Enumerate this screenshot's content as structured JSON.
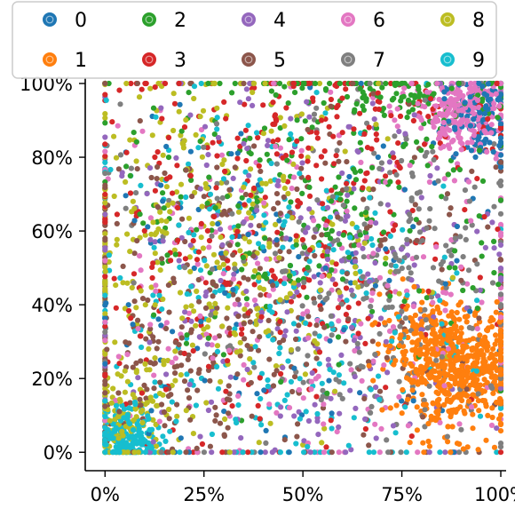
{
  "chart_data": {
    "type": "scatter",
    "title": "",
    "xlabel": "",
    "ylabel": "",
    "xlim": [
      -0.05,
      1.0
    ],
    "ylim": [
      -0.05,
      1.0
    ],
    "grid": false,
    "legend": {
      "placement": "top",
      "columns": 5
    },
    "x_ticks": [
      {
        "value": 0.0,
        "label": "0%"
      },
      {
        "value": 0.25,
        "label": "25%"
      },
      {
        "value": 0.5,
        "label": "50%"
      },
      {
        "value": 0.75,
        "label": "75%"
      },
      {
        "value": 1.0,
        "label": "100%"
      }
    ],
    "y_ticks": [
      {
        "value": 0.0,
        "label": "0%"
      },
      {
        "value": 0.2,
        "label": "20%"
      },
      {
        "value": 0.4,
        "label": "40%"
      },
      {
        "value": 0.6,
        "label": "60%"
      },
      {
        "value": 0.8,
        "label": "80%"
      },
      {
        "value": 1.0,
        "label": "100%"
      }
    ],
    "series": [
      {
        "name": "0",
        "color": "#1f77b4",
        "clusters": [
          {
            "cx": 0.95,
            "cy": 0.9,
            "sx": 0.05,
            "sy": 0.06,
            "n": 120
          },
          {
            "cx": 0.45,
            "cy": 0.5,
            "sx": 0.28,
            "sy": 0.28,
            "n": 130
          }
        ]
      },
      {
        "name": "1",
        "color": "#ff7f0e",
        "clusters": [
          {
            "cx": 0.9,
            "cy": 0.22,
            "sx": 0.08,
            "sy": 0.08,
            "n": 520
          },
          {
            "cx": 0.82,
            "cy": 0.3,
            "sx": 0.06,
            "sy": 0.06,
            "n": 160
          }
        ]
      },
      {
        "name": "2",
        "color": "#2ca02c",
        "clusters": [
          {
            "cx": 0.55,
            "cy": 0.7,
            "sx": 0.26,
            "sy": 0.22,
            "n": 280
          },
          {
            "cx": 0.8,
            "cy": 0.96,
            "sx": 0.15,
            "sy": 0.03,
            "n": 90
          }
        ]
      },
      {
        "name": "3",
        "color": "#d62728",
        "clusters": [
          {
            "cx": 0.4,
            "cy": 0.55,
            "sx": 0.28,
            "sy": 0.28,
            "n": 300
          },
          {
            "cx": 0.7,
            "cy": 0.9,
            "sx": 0.2,
            "sy": 0.07,
            "n": 90
          }
        ]
      },
      {
        "name": "4",
        "color": "#9467bd",
        "clusters": [
          {
            "cx": 0.5,
            "cy": 0.5,
            "sx": 0.28,
            "sy": 0.28,
            "n": 280
          }
        ]
      },
      {
        "name": "5",
        "color": "#8c564b",
        "clusters": [
          {
            "cx": 0.4,
            "cy": 0.45,
            "sx": 0.28,
            "sy": 0.28,
            "n": 300
          },
          {
            "cx": 0.15,
            "cy": 0.2,
            "sx": 0.1,
            "sy": 0.12,
            "n": 80
          }
        ]
      },
      {
        "name": "6",
        "color": "#e377c2",
        "clusters": [
          {
            "cx": 0.9,
            "cy": 0.92,
            "sx": 0.06,
            "sy": 0.05,
            "n": 260
          },
          {
            "cx": 0.5,
            "cy": 0.45,
            "sx": 0.3,
            "sy": 0.28,
            "n": 260
          }
        ]
      },
      {
        "name": "7",
        "color": "#7f7f7f",
        "clusters": [
          {
            "cx": 0.8,
            "cy": 0.45,
            "sx": 0.18,
            "sy": 0.25,
            "n": 220
          },
          {
            "cx": 0.5,
            "cy": 0.5,
            "sx": 0.28,
            "sy": 0.28,
            "n": 120
          }
        ]
      },
      {
        "name": "8",
        "color": "#bcbd22",
        "clusters": [
          {
            "cx": 0.25,
            "cy": 0.55,
            "sx": 0.22,
            "sy": 0.28,
            "n": 380
          },
          {
            "cx": 0.05,
            "cy": 0.1,
            "sx": 0.05,
            "sy": 0.08,
            "n": 120
          }
        ]
      },
      {
        "name": "9",
        "color": "#17becf",
        "clusters": [
          {
            "cx": 0.4,
            "cy": 0.4,
            "sx": 0.26,
            "sy": 0.28,
            "n": 300
          },
          {
            "cx": 0.05,
            "cy": 0.04,
            "sx": 0.04,
            "sy": 0.04,
            "n": 220
          }
        ]
      }
    ]
  }
}
